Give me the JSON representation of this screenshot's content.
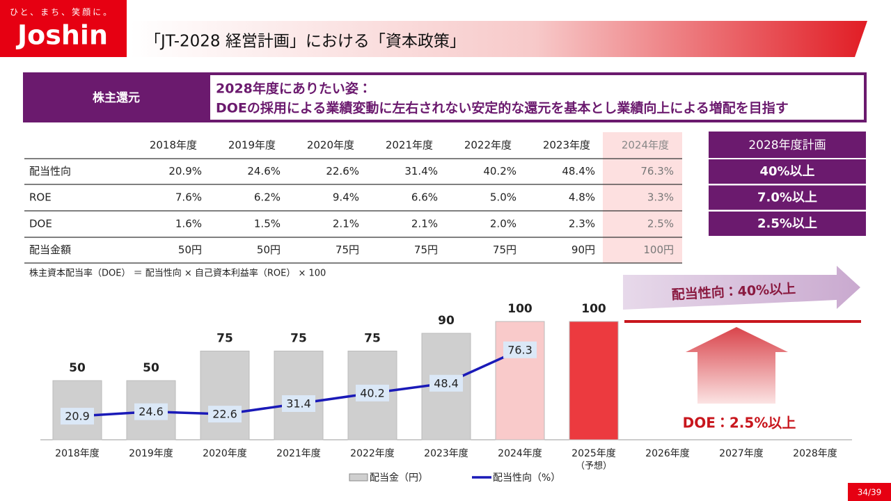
{
  "logo": {
    "tagline": "ひと、まち、笑顔に。",
    "name": "Joshin"
  },
  "header": {
    "title": "「JT-2028 経営計画」における「資本政策」"
  },
  "banner": {
    "label": "株主還元",
    "lines": [
      "2028年度にありたい姿：",
      "DOEの採用による業績変動に左右されない安定的な還元を基本とし業績向上による増配を目指す"
    ]
  },
  "table": {
    "columns": [
      "2018年度",
      "2019年度",
      "2020年度",
      "2021年度",
      "2022年度",
      "2023年度",
      "2024年度"
    ],
    "rows": [
      [
        "配当性向",
        "20.9%",
        "24.6%",
        "22.6%",
        "31.4%",
        "40.2%",
        "48.4%",
        "76.3%"
      ],
      [
        "ROE",
        "7.6%",
        "6.2%",
        "9.4%",
        "6.6%",
        "5.0%",
        "4.8%",
        "3.3%"
      ],
      [
        "DOE",
        "1.6%",
        "1.5%",
        "2.1%",
        "2.1%",
        "2.0%",
        "2.3%",
        "2.5%"
      ],
      [
        "配当金額",
        "50円",
        "50円",
        "75円",
        "75円",
        "75円",
        "90円",
        "100円"
      ]
    ]
  },
  "plan": {
    "header": "2028年度計画",
    "rows": [
      "40%以上",
      "7.0%以上",
      "2.5%以上"
    ]
  },
  "formula": "株主資本配当率（DOE） ＝ 配当性向 × 自己資本利益率（ROE） × 100",
  "chart_data": {
    "type": "bar-line",
    "categories": [
      "2018年度",
      "2019年度",
      "2020年度",
      "2021年度",
      "2022年度",
      "2023年度",
      "2024年度",
      "2025年度",
      "2026年度",
      "2027年度",
      "2028年度"
    ],
    "category_note": {
      "index": 7,
      "text": "（予想）"
    },
    "series": [
      {
        "name": "配当金（円）",
        "type": "bar",
        "colors": [
          "#cfcfcf",
          "#cfcfcf",
          "#cfcfcf",
          "#cfcfcf",
          "#cfcfcf",
          "#cfcfcf",
          "#f9caca",
          "#ec3a3f",
          null,
          null,
          null
        ],
        "values": [
          50,
          50,
          75,
          75,
          75,
          90,
          100,
          100,
          null,
          null,
          null
        ]
      },
      {
        "name": "配当性向（%）",
        "type": "line",
        "color": "#1a1ab8",
        "axis": "y2",
        "values": [
          20.9,
          24.6,
          22.6,
          31.4,
          40.2,
          48.4,
          76.3,
          null,
          null,
          null,
          null
        ]
      }
    ],
    "ylim": [
      0,
      100
    ],
    "y2lim": [
      0,
      100
    ],
    "annotations": [
      "配当性向：40%以上",
      "DOE：2.5%以上"
    ]
  },
  "page": "34/39"
}
